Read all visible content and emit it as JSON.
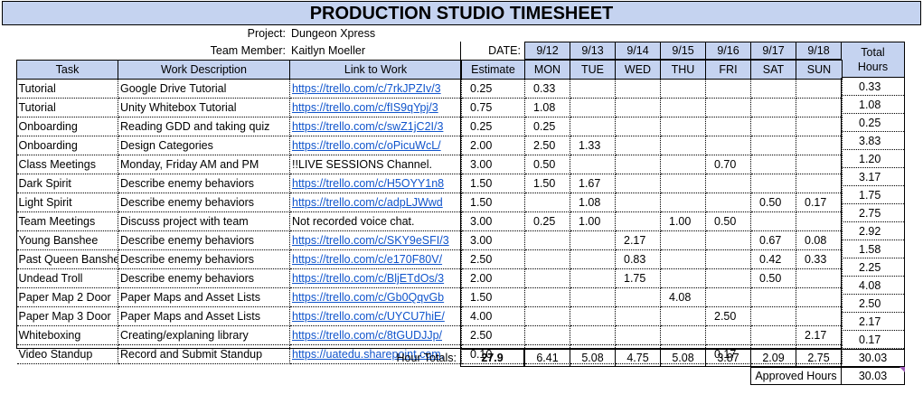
{
  "title": "PRODUCTION STUDIO TIMESHEET",
  "project_label": "Project:",
  "project_value": "Dungeon Xpress",
  "member_label": "Team Member:",
  "member_value": "Kaitlyn Moeller",
  "date_label": "DATE:",
  "dates": [
    "9/12",
    "9/13",
    "9/14",
    "9/15",
    "9/16",
    "9/17",
    "9/18"
  ],
  "days": [
    "MON",
    "TUE",
    "WED",
    "THU",
    "FRI",
    "SAT",
    "SUN"
  ],
  "headers": {
    "task": "Task",
    "work": "Work Description",
    "link": "Link to Work",
    "estimate": "Estimate",
    "total_line1": "Total",
    "total_line2": "Hours"
  },
  "rows": [
    {
      "task": "Tutorial",
      "work": "Google Drive Tutorial",
      "link": "https://trello.com/c/7rkJPZIv/3",
      "link_is_url": true,
      "estimate": "0.25",
      "days": [
        "0.33",
        "",
        "",
        "",
        "",
        "",
        ""
      ],
      "total": "0.33"
    },
    {
      "task": "Tutorial",
      "work": "Unity Whitebox Tutorial",
      "link": "https://trello.com/c/fIS9qYpj/3",
      "link_is_url": true,
      "estimate": "0.75",
      "days": [
        "1.08",
        "",
        "",
        "",
        "",
        "",
        ""
      ],
      "total": "1.08"
    },
    {
      "task": "Onboarding",
      "work": "Reading GDD and taking quiz",
      "link": "https://trello.com/c/swZ1jC2I/3",
      "link_is_url": true,
      "estimate": "0.25",
      "days": [
        "0.25",
        "",
        "",
        "",
        "",
        "",
        ""
      ],
      "total": "0.25"
    },
    {
      "task": "Onboarding",
      "work": "Design Categories",
      "link": "https://trello.com/c/oPicuWcL/",
      "link_is_url": true,
      "estimate": "2.00",
      "days": [
        "2.50",
        "1.33",
        "",
        "",
        "",
        "",
        ""
      ],
      "total": "3.83"
    },
    {
      "task": "Class Meetings",
      "work": "Monday, Friday AM and PM",
      "link": "!!LIVE SESSIONS Channel.",
      "link_is_url": false,
      "estimate": "3.00",
      "days": [
        "0.50",
        "",
        "",
        "",
        "0.70",
        "",
        ""
      ],
      "total": "1.20"
    },
    {
      "task": "Dark Spirit",
      "work": "Describe enemy behaviors",
      "link": "https://trello.com/c/H5OYY1n8",
      "link_is_url": true,
      "estimate": "1.50",
      "days": [
        "1.50",
        "1.67",
        "",
        "",
        "",
        "",
        ""
      ],
      "total": "3.17"
    },
    {
      "task": "Light Spirit",
      "work": "Describe enemy behaviors",
      "link": "https://trello.com/c/adpLJWwd",
      "link_is_url": true,
      "estimate": "1.50",
      "days": [
        "",
        "1.08",
        "",
        "",
        "",
        "0.50",
        "0.17"
      ],
      "total": "1.75"
    },
    {
      "task": "Team Meetings",
      "work": "Discuss project with team",
      "link": "Not recorded voice chat.",
      "link_is_url": false,
      "estimate": "3.00",
      "days": [
        "0.25",
        "1.00",
        "",
        "1.00",
        "0.50",
        "",
        ""
      ],
      "total": "2.75"
    },
    {
      "task": "Young Banshee",
      "work": "Describe enemy behaviors",
      "link": "https://trello.com/c/SKY9eSFI/3",
      "link_is_url": true,
      "estimate": "3.00",
      "days": [
        "",
        "",
        "2.17",
        "",
        "",
        "0.67",
        "0.08"
      ],
      "total": "2.92"
    },
    {
      "task": "Past Queen Banshee",
      "work": "Describe enemy behaviors",
      "link": "https://trello.com/c/e170F80V/",
      "link_is_url": true,
      "estimate": "2.50",
      "days": [
        "",
        "",
        "0.83",
        "",
        "",
        "0.42",
        "0.33"
      ],
      "total": "1.58"
    },
    {
      "task": "Undead Troll",
      "work": "Describe enemy behaviors",
      "link": "https://trello.com/c/BljETdOs/3",
      "link_is_url": true,
      "estimate": "2.00",
      "days": [
        "",
        "",
        "1.75",
        "",
        "",
        "0.50",
        ""
      ],
      "total": "2.25"
    },
    {
      "task": "Paper Map 2 Door",
      "work": "Paper Maps and Asset Lists",
      "link": "https://trello.com/c/Gb0QqvGb",
      "link_is_url": true,
      "estimate": "1.50",
      "days": [
        "",
        "",
        "",
        "4.08",
        "",
        "",
        ""
      ],
      "total": "4.08"
    },
    {
      "task": "Paper Map 3 Door",
      "work": "Paper Maps and Asset Lists",
      "link": "https://trello.com/c/UYCU7hiE/",
      "link_is_url": true,
      "estimate": "4.00",
      "days": [
        "",
        "",
        "",
        "",
        "2.50",
        "",
        ""
      ],
      "total": "2.50"
    },
    {
      "task": "Whiteboxing",
      "work": "Creating/explaning library",
      "link": "https://trello.com/c/8tGUDJJp/",
      "link_is_url": true,
      "estimate": "2.50",
      "days": [
        "",
        "",
        "",
        "",
        "",
        "",
        "2.17"
      ],
      "total": "2.17"
    },
    {
      "task": "Video Standup",
      "work": "Record and Submit Standup",
      "link": "https://uatedu.sharepoint.com,",
      "link_is_url": true,
      "estimate": "0.10",
      "days": [
        "",
        "",
        "",
        "",
        "0.17",
        "",
        ""
      ],
      "total": "0.17"
    }
  ],
  "totals": {
    "label": "Hour Totals:",
    "estimate": "27.9",
    "days": [
      "6.41",
      "5.08",
      "4.75",
      "5.08",
      "3.87",
      "2.09",
      "2.75"
    ],
    "total": "30.03"
  },
  "approved_label": "Approved Hours",
  "approved_value": "30.03",
  "colors": {
    "header_fill": "#c5d3f0",
    "link": "#1155cc"
  }
}
